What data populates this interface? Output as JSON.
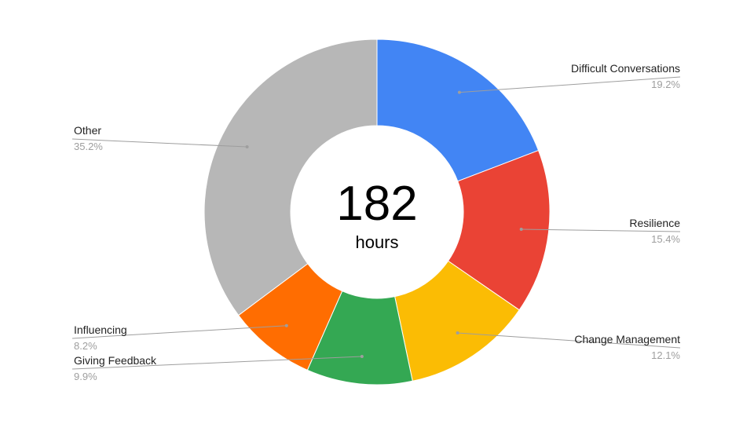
{
  "chart_data": {
    "type": "pie",
    "variant": "donut",
    "center_value": "182",
    "center_unit": "hours",
    "slices": [
      {
        "name": "Difficult Conversations",
        "pct_label": "19.2%",
        "value": 19.2,
        "color": "#4285f4"
      },
      {
        "name": "Resilience",
        "pct_label": "15.4%",
        "value": 15.4,
        "color": "#ea4335"
      },
      {
        "name": "Change Management",
        "pct_label": "12.1%",
        "value": 12.1,
        "color": "#fbbc04"
      },
      {
        "name": "Giving Feedback",
        "pct_label": "9.9%",
        "value": 9.9,
        "color": "#34a853"
      },
      {
        "name": "Influencing",
        "pct_label": "8.2%",
        "value": 8.2,
        "color": "#ff6d01"
      },
      {
        "name": "Other",
        "pct_label": "35.2%",
        "value": 35.2,
        "color": "#b7b7b7"
      }
    ],
    "legend": "none",
    "labels": "outside with leader lines"
  }
}
